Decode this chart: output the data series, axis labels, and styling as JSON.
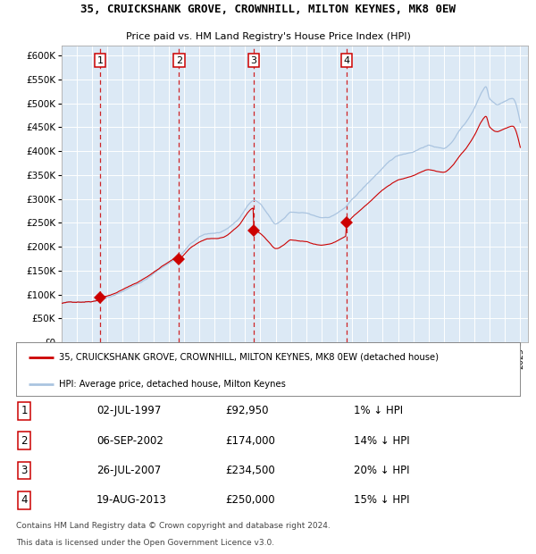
{
  "title": "35, CRUICKSHANK GROVE, CROWNHILL, MILTON KEYNES, MK8 0EW",
  "subtitle": "Price paid vs. HM Land Registry's House Price Index (HPI)",
  "legend_line1": "35, CRUICKSHANK GROVE, CROWNHILL, MILTON KEYNES, MK8 0EW (detached house)",
  "legend_line2": "HPI: Average price, detached house, Milton Keynes",
  "footer1": "Contains HM Land Registry data © Crown copyright and database right 2024.",
  "footer2": "This data is licensed under the Open Government Licence v3.0.",
  "table_labels": [
    "1",
    "2",
    "3",
    "4"
  ],
  "table_dates": [
    "02-JUL-1997",
    "06-SEP-2002",
    "26-JUL-2007",
    "19-AUG-2013"
  ],
  "table_prices": [
    "£92,950",
    "£174,000",
    "£234,500",
    "£250,000"
  ],
  "table_pcts": [
    "1% ↓ HPI",
    "14% ↓ HPI",
    "20% ↓ HPI",
    "15% ↓ HPI"
  ],
  "hpi_color": "#aac4e0",
  "price_color": "#cc0000",
  "plot_bg": "#dce9f5",
  "grid_color": "#ffffff",
  "marker_years": [
    1997.51,
    2002.68,
    2007.56,
    2013.63
  ],
  "marker_prices": [
    92950,
    174000,
    234500,
    250000
  ],
  "ylim": [
    0,
    620000
  ],
  "yticks": [
    0,
    50000,
    100000,
    150000,
    200000,
    250000,
    300000,
    350000,
    400000,
    450000,
    500000,
    550000,
    600000
  ],
  "xlim_start": 1995.0,
  "xlim_end": 2025.5,
  "hpi_anchors": [
    [
      1995.0,
      82000
    ],
    [
      1996.0,
      85000
    ],
    [
      1997.0,
      88000
    ],
    [
      1997.5,
      93000
    ],
    [
      1998.5,
      102000
    ],
    [
      1999.5,
      118000
    ],
    [
      2000.5,
      135000
    ],
    [
      2001.5,
      158000
    ],
    [
      2002.75,
      185000
    ],
    [
      2003.5,
      210000
    ],
    [
      2004.5,
      228000
    ],
    [
      2005.5,
      232000
    ],
    [
      2006.5,
      255000
    ],
    [
      2007.58,
      296000
    ],
    [
      2008.0,
      288000
    ],
    [
      2008.5,
      268000
    ],
    [
      2009.0,
      248000
    ],
    [
      2009.5,
      258000
    ],
    [
      2010.0,
      272000
    ],
    [
      2010.5,
      270000
    ],
    [
      2011.0,
      268000
    ],
    [
      2011.5,
      262000
    ],
    [
      2012.0,
      258000
    ],
    [
      2012.5,
      260000
    ],
    [
      2013.0,
      268000
    ],
    [
      2013.63,
      282000
    ],
    [
      2014.0,
      295000
    ],
    [
      2015.0,
      328000
    ],
    [
      2016.0,
      360000
    ],
    [
      2017.0,
      385000
    ],
    [
      2018.0,
      395000
    ],
    [
      2019.0,
      408000
    ],
    [
      2020.0,
      402000
    ],
    [
      2020.5,
      415000
    ],
    [
      2021.0,
      440000
    ],
    [
      2021.5,
      462000
    ],
    [
      2022.0,
      490000
    ],
    [
      2022.5,
      525000
    ],
    [
      2022.75,
      535000
    ],
    [
      2023.0,
      510000
    ],
    [
      2023.5,
      498000
    ],
    [
      2024.0,
      505000
    ],
    [
      2024.5,
      510000
    ],
    [
      2025.0,
      460000
    ]
  ]
}
